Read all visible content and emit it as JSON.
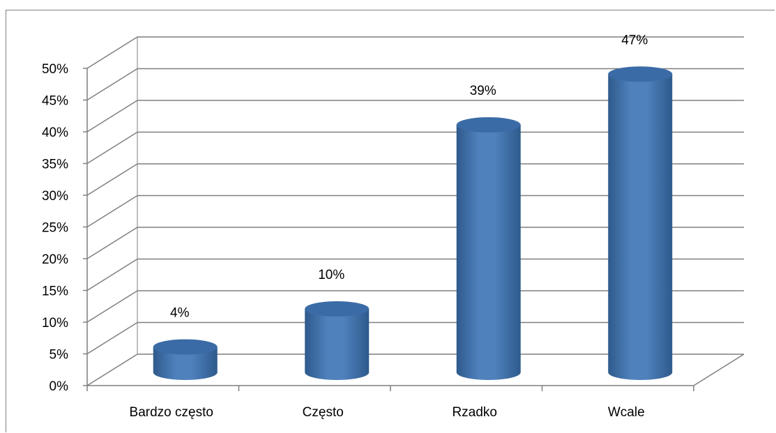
{
  "chart_data": {
    "type": "bar",
    "style": "3d-cylinder",
    "categories": [
      "Bardzo często",
      "Często",
      "Rzadko",
      "Wcale"
    ],
    "values": [
      4,
      10,
      39,
      47
    ],
    "data_labels": [
      "4%",
      "10%",
      "39%",
      "47%"
    ],
    "yticks": [
      "0%",
      "5%",
      "10%",
      "15%",
      "20%",
      "25%",
      "30%",
      "35%",
      "40%",
      "45%",
      "50%"
    ],
    "ylim": [
      0,
      50
    ],
    "grid": true,
    "legend": "none",
    "title": "",
    "xlabel": "",
    "ylabel": "",
    "colors": {
      "bar": "#4F81BD",
      "bar_dark": "#2E5A8C",
      "bar_top": "#3A6BA6",
      "grid": "#7f7f7f"
    }
  }
}
